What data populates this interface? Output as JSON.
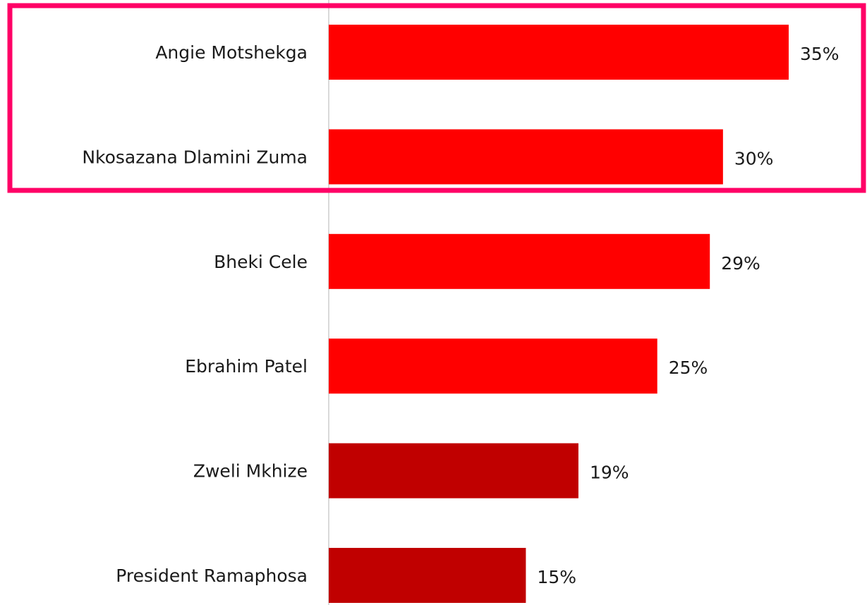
{
  "chart_data": {
    "type": "bar",
    "orientation": "horizontal",
    "categories": [
      "Angie Motshekga",
      "Nkosazana Dlamini Zuma",
      "Bheki Cele",
      "Ebrahim Patel",
      "Zweli Mkhize",
      "President Ramaphosa"
    ],
    "values": [
      35,
      30,
      29,
      25,
      19,
      15
    ],
    "value_labels": [
      "35%",
      "30%",
      "29%",
      "25%",
      "19%",
      "15%"
    ],
    "colors": [
      "#ff0000",
      "#ff0000",
      "#ff0000",
      "#ff0000",
      "#c00000",
      "#c00000"
    ],
    "xlim": [
      0,
      35
    ]
  }
}
